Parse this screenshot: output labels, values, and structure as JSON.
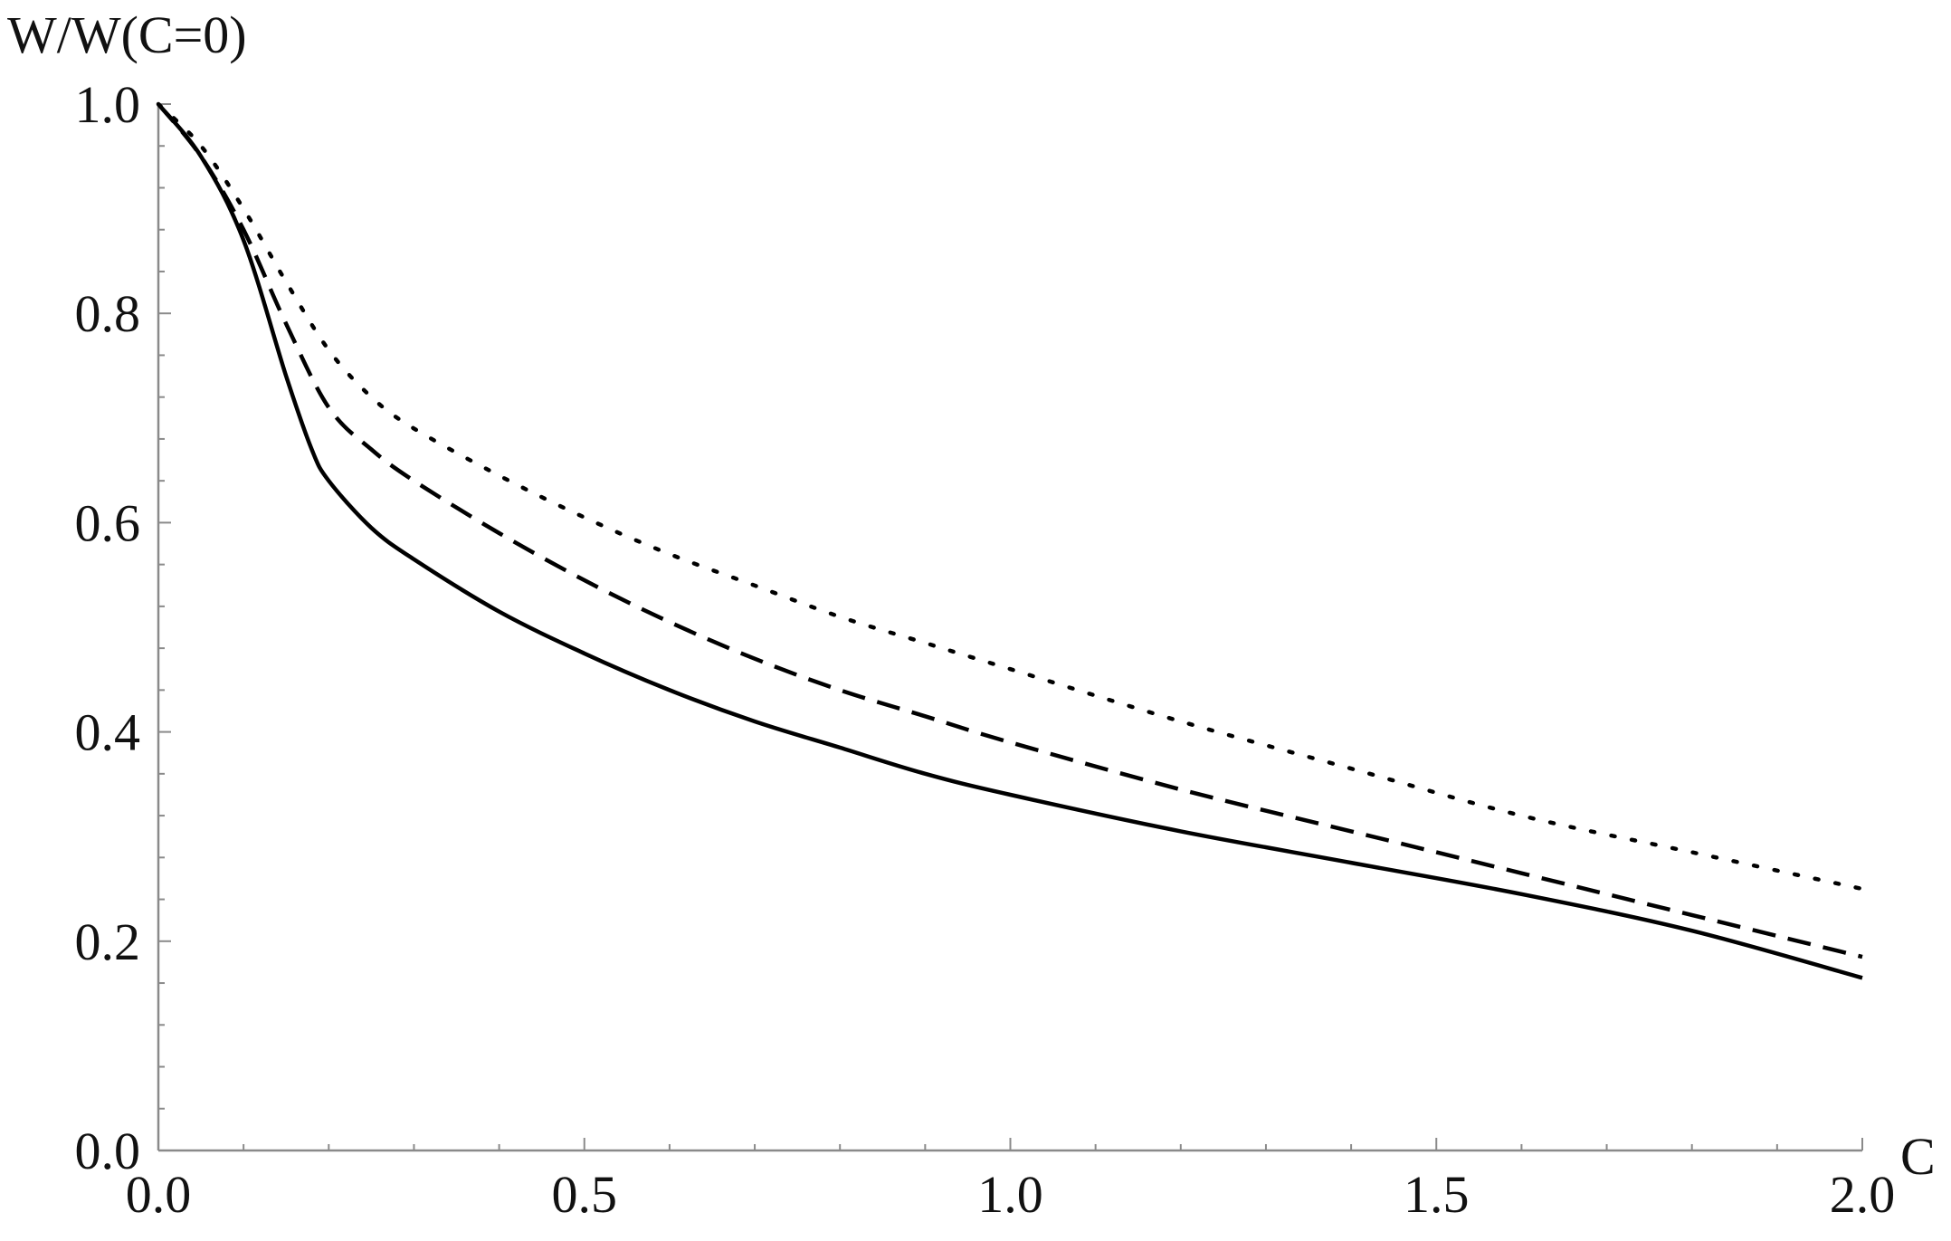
{
  "chart_data": {
    "type": "line",
    "xlabel": "C",
    "ylabel": "W/W(C=0)",
    "xlim": [
      0,
      2
    ],
    "ylim": [
      0,
      1
    ],
    "x_ticks": [
      "0.0",
      "0.5",
      "1.0",
      "1.5",
      "2.0"
    ],
    "y_ticks": [
      "0.0",
      "0.2",
      "0.4",
      "0.6",
      "0.8",
      "1.0"
    ],
    "grid": false,
    "legend": "none",
    "series": [
      {
        "style": "solid",
        "x": [
          0,
          0.05,
          0.1,
          0.15,
          0.18,
          0.2,
          0.25,
          0.3,
          0.4,
          0.5,
          0.6,
          0.7,
          0.8,
          0.9,
          1.0,
          1.2,
          1.4,
          1.6,
          1.8,
          2.0
        ],
        "y": [
          1.0,
          0.95,
          0.87,
          0.74,
          0.67,
          0.64,
          0.595,
          0.565,
          0.515,
          0.475,
          0.44,
          0.41,
          0.385,
          0.36,
          0.34,
          0.305,
          0.275,
          0.245,
          0.21,
          0.165
        ]
      },
      {
        "style": "dashed",
        "x": [
          0,
          0.05,
          0.1,
          0.15,
          0.2,
          0.25,
          0.3,
          0.4,
          0.5,
          0.6,
          0.7,
          0.8,
          0.9,
          1.0,
          1.2,
          1.4,
          1.6,
          1.8,
          2.0
        ],
        "y": [
          1.0,
          0.95,
          0.88,
          0.79,
          0.71,
          0.67,
          0.64,
          0.59,
          0.545,
          0.505,
          0.47,
          0.44,
          0.415,
          0.39,
          0.345,
          0.305,
          0.265,
          0.225,
          0.185
        ]
      },
      {
        "style": "dotted",
        "x": [
          0,
          0.05,
          0.1,
          0.15,
          0.2,
          0.25,
          0.3,
          0.4,
          0.5,
          0.6,
          0.7,
          0.8,
          0.9,
          1.0,
          1.2,
          1.4,
          1.6,
          1.8,
          2.0
        ],
        "y": [
          1.0,
          0.96,
          0.9,
          0.83,
          0.765,
          0.72,
          0.69,
          0.645,
          0.605,
          0.57,
          0.54,
          0.51,
          0.485,
          0.46,
          0.41,
          0.365,
          0.32,
          0.285,
          0.25
        ]
      }
    ],
    "colors": {
      "line": "#000000",
      "axis": "#8a8a8a"
    }
  }
}
